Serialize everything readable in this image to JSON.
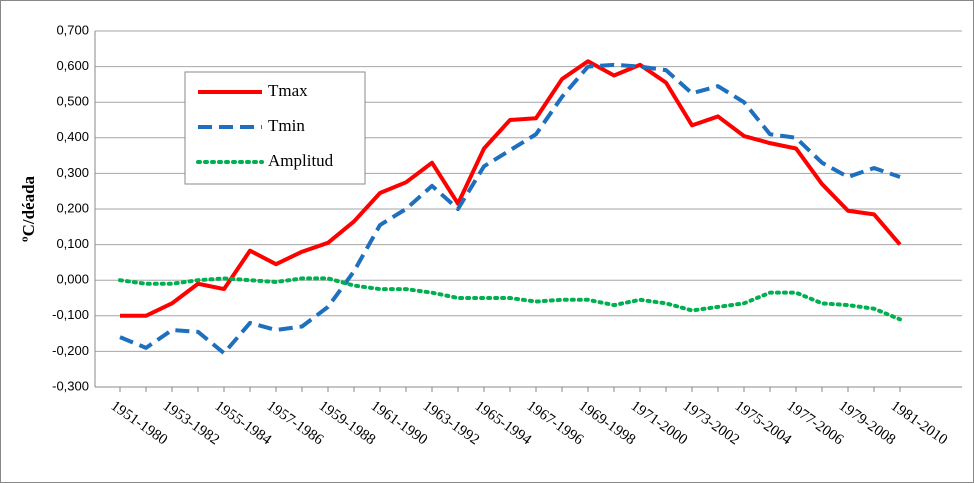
{
  "chart_data": {
    "type": "line",
    "y_label": "ºC/déada",
    "categories": [
      "1951-1980",
      null,
      "1953-1982",
      null,
      "1955-1984",
      null,
      "1957-1986",
      null,
      "1959-1988",
      null,
      "1961-1990",
      null,
      "1963-1992",
      null,
      "1965-1994",
      null,
      "1967-1996",
      null,
      "1969-1998",
      null,
      "1971-2000",
      null,
      "1973-2002",
      null,
      "1975-2004",
      null,
      "1977-2006",
      null,
      "1979-2008",
      null,
      "1981-2010"
    ],
    "series": [
      {
        "name": "Tmax",
        "color": "#ff0000",
        "style": "solid",
        "values": [
          -0.1,
          -0.1,
          -0.065,
          -0.01,
          -0.025,
          0.083,
          0.045,
          0.08,
          0.105,
          0.165,
          0.245,
          0.275,
          0.33,
          0.215,
          0.37,
          0.45,
          0.455,
          0.565,
          0.615,
          0.575,
          0.605,
          0.555,
          0.435,
          0.46,
          0.405,
          0.385,
          0.37,
          0.27,
          0.195,
          0.185,
          0.1
        ]
      },
      {
        "name": "Tmin",
        "color": "#1f6fbf",
        "style": "dashed",
        "values": [
          -0.16,
          -0.19,
          -0.14,
          -0.145,
          -0.205,
          -0.12,
          -0.14,
          -0.13,
          -0.075,
          0.025,
          0.155,
          0.2,
          0.265,
          0.2,
          0.32,
          0.365,
          0.41,
          0.515,
          0.6,
          0.605,
          0.6,
          0.59,
          0.525,
          0.545,
          0.5,
          0.41,
          0.4,
          0.33,
          0.29,
          0.315,
          0.29
        ]
      },
      {
        "name": "Amplitud",
        "color": "#00b050",
        "style": "dotted",
        "values": [
          0.0,
          -0.01,
          -0.01,
          0.0,
          0.005,
          0.0,
          -0.005,
          0.005,
          0.005,
          -0.015,
          -0.025,
          -0.025,
          -0.035,
          -0.05,
          -0.05,
          -0.05,
          -0.06,
          -0.055,
          -0.055,
          -0.07,
          -0.055,
          -0.065,
          -0.085,
          -0.075,
          -0.065,
          -0.035,
          -0.035,
          -0.065,
          -0.07,
          -0.08,
          -0.11
        ]
      }
    ],
    "ylim": [
      -0.3,
      0.7
    ],
    "yticks": [
      {
        "value": -0.3,
        "label": "-0,300"
      },
      {
        "value": -0.2,
        "label": "-0,200"
      },
      {
        "value": -0.1,
        "label": "-0,100"
      },
      {
        "value": 0,
        "label": "0,000"
      },
      {
        "value": 0.1,
        "label": "0,100"
      },
      {
        "value": 0.2,
        "label": "0,200"
      },
      {
        "value": 0.3,
        "label": "0,300"
      },
      {
        "value": 0.4,
        "label": "0,400"
      },
      {
        "value": 0.5,
        "label": "0,500"
      },
      {
        "value": 0.6,
        "label": "0,600"
      },
      {
        "value": 0.7,
        "label": "0,700"
      }
    ],
    "grid": true
  }
}
